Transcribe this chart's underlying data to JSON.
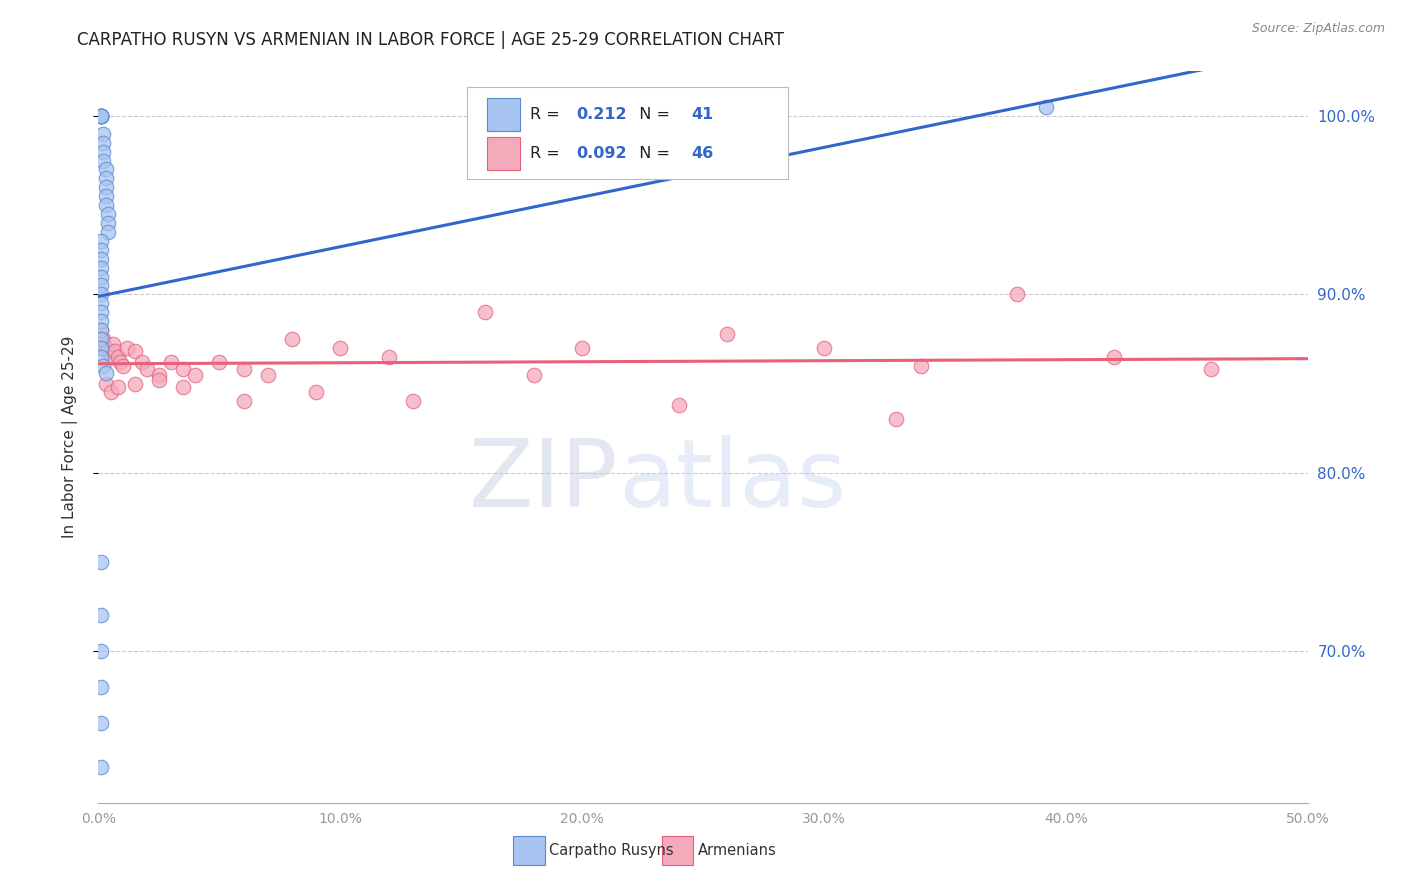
{
  "title": "CARPATHO RUSYN VS ARMENIAN IN LABOR FORCE | AGE 25-29 CORRELATION CHART",
  "source": "Source: ZipAtlas.com",
  "ylabel": "In Labor Force | Age 25-29",
  "xlim": [
    0.0,
    0.5
  ],
  "ylim": [
    0.615,
    1.025
  ],
  "r_blue": "0.212",
  "n_blue": "41",
  "r_pink": "0.092",
  "n_pink": "46",
  "blue_scatter_color": "#A8C4F0",
  "blue_edge_color": "#5588CC",
  "pink_scatter_color": "#F5AABB",
  "pink_edge_color": "#E06080",
  "trendline_blue": "#3366CC",
  "trendline_pink": "#E8607A",
  "legend_label_blue": "Carpatho Rusyns",
  "legend_label_pink": "Armenians",
  "blue_x": [
    0.001,
    0.001,
    0.001,
    0.001,
    0.001,
    0.001,
    0.002,
    0.002,
    0.002,
    0.002,
    0.003,
    0.003,
    0.003,
    0.003,
    0.003,
    0.004,
    0.004,
    0.004,
    0.001,
    0.001,
    0.001,
    0.001,
    0.001,
    0.001,
    0.001,
    0.001,
    0.001,
    0.001,
    0.001,
    0.001,
    0.001,
    0.001,
    0.002,
    0.003,
    0.001,
    0.001,
    0.001,
    0.001,
    0.001,
    0.392,
    0.001
  ],
  "blue_y": [
    1.0,
    1.0,
    1.0,
    1.0,
    1.0,
    1.0,
    0.99,
    0.985,
    0.98,
    0.975,
    0.97,
    0.965,
    0.96,
    0.955,
    0.95,
    0.945,
    0.94,
    0.935,
    0.93,
    0.925,
    0.92,
    0.915,
    0.91,
    0.905,
    0.9,
    0.895,
    0.89,
    0.885,
    0.88,
    0.875,
    0.87,
    0.865,
    0.86,
    0.856,
    0.75,
    0.72,
    0.7,
    0.68,
    0.66,
    1.005,
    0.635
  ],
  "pink_x": [
    0.001,
    0.001,
    0.001,
    0.002,
    0.003,
    0.004,
    0.005,
    0.006,
    0.007,
    0.008,
    0.009,
    0.01,
    0.012,
    0.015,
    0.018,
    0.02,
    0.025,
    0.03,
    0.035,
    0.04,
    0.05,
    0.06,
    0.07,
    0.08,
    0.1,
    0.12,
    0.16,
    0.2,
    0.26,
    0.3,
    0.34,
    0.38,
    0.42,
    0.46,
    0.003,
    0.005,
    0.008,
    0.015,
    0.025,
    0.035,
    0.06,
    0.09,
    0.13,
    0.18,
    0.24,
    0.33
  ],
  "pink_y": [
    0.88,
    0.875,
    0.87,
    0.875,
    0.87,
    0.868,
    0.865,
    0.872,
    0.868,
    0.865,
    0.862,
    0.86,
    0.87,
    0.868,
    0.862,
    0.858,
    0.855,
    0.862,
    0.858,
    0.855,
    0.862,
    0.858,
    0.855,
    0.875,
    0.87,
    0.865,
    0.89,
    0.87,
    0.878,
    0.87,
    0.86,
    0.9,
    0.865,
    0.858,
    0.85,
    0.845,
    0.848,
    0.85,
    0.852,
    0.848,
    0.84,
    0.845,
    0.84,
    0.855,
    0.838,
    0.83
  ]
}
